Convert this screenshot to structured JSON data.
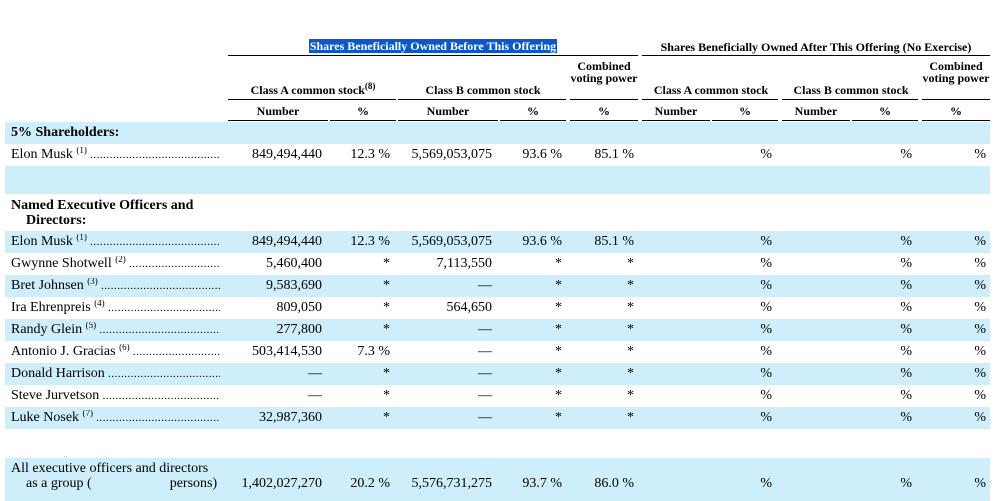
{
  "headers": {
    "before_group": "Shares Beneficially Owned Before This Offering",
    "after_group": "Shares Beneficially Owned After This Offering (No Exercise)",
    "class_a": "Class A common stock",
    "class_a_note": "(8)",
    "class_b": "Class B common stock",
    "combined": "Combined voting power",
    "number": "Number",
    "pct": "%"
  },
  "sections": {
    "five_pct": "5% Shareholders:",
    "named_line1": "Named Executive Officers and",
    "named_line2": "Directors:",
    "group_line1": "All executive officers and directors",
    "group_line2_a": "as a group (",
    "group_line2_b": "persons)"
  },
  "rows": [
    {
      "name": "Elon Musk",
      "note": "(1)",
      "a_num": "849,494,440",
      "a_pct": "12.3 %",
      "b_num": "5,569,053,075",
      "b_pct": "93.6 %",
      "vote": "85.1 %",
      "after_a": "%",
      "after_b": "%",
      "after_v": "%"
    },
    {
      "name": "Elon Musk",
      "note": "(1)",
      "a_num": "849,494,440",
      "a_pct": "12.3 %",
      "b_num": "5,569,053,075",
      "b_pct": "93.6 %",
      "vote": "85.1 %",
      "after_a": "%",
      "after_b": "%",
      "after_v": "%"
    },
    {
      "name": "Gwynne Shotwell",
      "note": "(2)",
      "a_num": "5,460,400",
      "a_pct": "*",
      "b_num": "7,113,550",
      "b_pct": "*",
      "vote": "*",
      "after_a": "%",
      "after_b": "%",
      "after_v": "%"
    },
    {
      "name": "Bret Johnsen",
      "note": "(3)",
      "a_num": "9,583,690",
      "a_pct": "*",
      "b_num": "—",
      "b_pct": "*",
      "vote": "*",
      "after_a": "%",
      "after_b": "%",
      "after_v": "%"
    },
    {
      "name": "Ira Ehrenpreis",
      "note": "(4)",
      "a_num": "809,050",
      "a_pct": "*",
      "b_num": "564,650",
      "b_pct": "*",
      "vote": "*",
      "after_a": "%",
      "after_b": "%",
      "after_v": "%"
    },
    {
      "name": "Randy Glein",
      "note": "(5)",
      "a_num": "277,800",
      "a_pct": "*",
      "b_num": "—",
      "b_pct": "*",
      "vote": "*",
      "after_a": "%",
      "after_b": "%",
      "after_v": "%"
    },
    {
      "name": "Antonio J. Gracias",
      "note": "(6)",
      "a_num": "503,414,530",
      "a_pct": "7.3 %",
      "b_num": "—",
      "b_pct": "*",
      "vote": "*",
      "after_a": "%",
      "after_b": "%",
      "after_v": "%"
    },
    {
      "name": "Donald Harrison",
      "note": "",
      "a_num": "—",
      "a_pct": "*",
      "b_num": "—",
      "b_pct": "*",
      "vote": "*",
      "after_a": "%",
      "after_b": "%",
      "after_v": "%"
    },
    {
      "name": "Steve Jurvetson",
      "note": "",
      "a_num": "—",
      "a_pct": "*",
      "b_num": "—",
      "b_pct": "*",
      "vote": "*",
      "after_a": "%",
      "after_b": "%",
      "after_v": "%"
    },
    {
      "name": "Luke Nosek",
      "note": "(7)",
      "a_num": "32,987,360",
      "a_pct": "*",
      "b_num": "—",
      "b_pct": "*",
      "vote": "*",
      "after_a": "%",
      "after_b": "%",
      "after_v": "%"
    },
    {
      "name": "",
      "note": "",
      "a_num": "1,402,027,270",
      "a_pct": "20.2 %",
      "b_num": "5,576,731,275",
      "b_pct": "93.7 %",
      "vote": "86.0 %",
      "after_a": "%",
      "after_b": "%",
      "after_v": "%"
    }
  ]
}
